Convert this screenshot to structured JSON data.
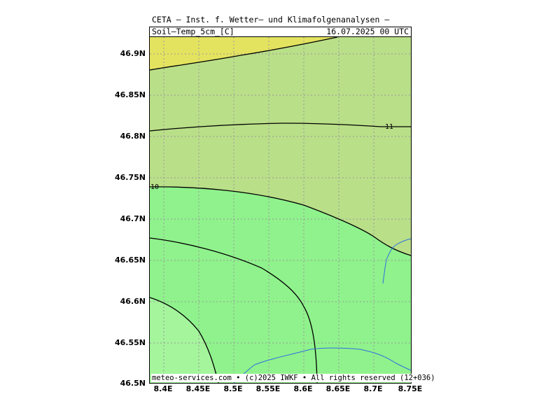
{
  "header": {
    "title": "CETA — Inst. f. Wetter— und Klimafolgenanalysen —",
    "parameter": "Soil—Temp_5cm_[C]",
    "datetime": "16.07.2025 00 UTC"
  },
  "map": {
    "lat_labels": [
      "46.9N",
      "46.85N",
      "46.8N",
      "46.75N",
      "46.7N",
      "46.65N",
      "46.6N",
      "46.55N",
      "46.5N"
    ],
    "lon_labels": [
      "8.4E",
      "8.45E",
      "8.5E",
      "8.55E",
      "8.6E",
      "8.65E",
      "8.7E",
      "8.75E"
    ],
    "lat_range": [
      46.5,
      46.92
    ],
    "lon_range": [
      8.38,
      8.75
    ],
    "contour_labels": [
      "10",
      "11"
    ],
    "colors": {
      "warmest": "#e4e35f",
      "warm": "#b9df88",
      "mid": "#8ff28c",
      "cool": "#a4f59c",
      "contour": "#000000",
      "river": "#2f6fe0",
      "grid": "#9a9a9a"
    }
  },
  "footer": {
    "credit": "meteo-services.com • (c)2025 IWKF • All rights reserved (12+036)"
  }
}
